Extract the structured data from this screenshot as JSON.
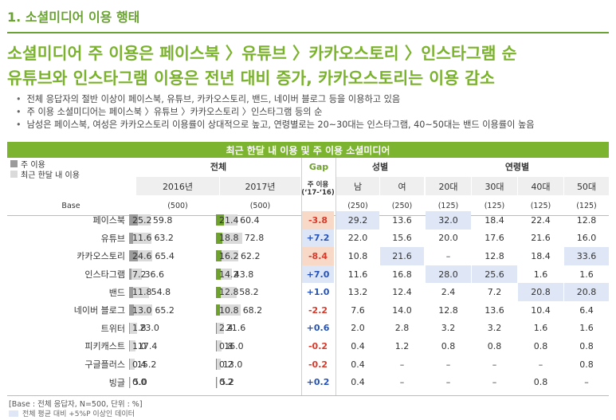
{
  "section_title": "1. 소셜미디어 이용 행태",
  "headline": [
    "소셜미디어 주 이용은 페이스북 〉유튜브 〉카카오스토리 〉인스타그램 순",
    "유튜브와 인스타그램 이용은 전년 대비 증가, 카카오스토리는 이용 감소"
  ],
  "bullets": [
    "전체 응답자의 절반 이상이 페이스북, 유튜브, 카카오스토리, 밴드, 네이버 블로그 등을 이용하고 있음",
    "주 이용 소셜미디어는 페이스북 〉유튜브 〉카카오스토리 〉인스타그램 등의 순",
    "남성은 페이스북, 여성은 카카오스토리 이용률이 상대적으로 높고, 연령별로는 20~30대는 인스타그램, 40~50대는 밴드 이용률이 높음"
  ],
  "table": {
    "banner": "최근 한달 내 이용 및 주 이용 소셜미디어",
    "legend_main": "주 이용",
    "legend_all": "최근 한달 내 이용",
    "group_total": "전체",
    "group_gap": "Gap",
    "gap_sub": "주 이용\n(‘17-‘16)",
    "group_gender": "성별",
    "group_age": "연령별",
    "col_2016": "2016년",
    "col_2017": "2017년",
    "col_male": "남",
    "col_female": "여",
    "col_20": "20대",
    "col_30": "30대",
    "col_40": "40대",
    "col_50": "50대",
    "base_label": "Base",
    "base": [
      "(500)",
      "(500)",
      "(250)",
      "(250)",
      "(125)",
      "(125)",
      "(125)",
      "(125)"
    ],
    "colors": {
      "main2016": "#9b9b9b",
      "main2017": "#6ea12e",
      "all": "#dadada",
      "highlight": "#dfe7f7",
      "neg": "#d63a2b",
      "pos": "#2452b9"
    },
    "rows": [
      {
        "name": "페이스북",
        "m16": 25.2,
        "a16": 59.8,
        "m17": 21.4,
        "a17": 60.4,
        "gap": "-3.8",
        "gap_hl": true,
        "male": "29.2",
        "female": "13.6",
        "a20": "32.0",
        "a30": "18.4",
        "a40": "22.4",
        "a50": "12.8",
        "hl": [
          "male",
          "a20"
        ]
      },
      {
        "name": "유튜브",
        "m16": 11.6,
        "a16": 63.2,
        "m17": 18.8,
        "a17": 72.8,
        "gap": "+7.2",
        "gap_hl": true,
        "male": "22.0",
        "female": "15.6",
        "a20": "20.0",
        "a30": "17.6",
        "a40": "21.6",
        "a50": "16.0",
        "hl": []
      },
      {
        "name": "카카오스토리",
        "m16": 24.6,
        "a16": 65.4,
        "m17": 16.2,
        "a17": 62.2,
        "gap": "-8.4",
        "gap_hl": true,
        "male": "10.8",
        "female": "21.6",
        "a20": "–",
        "a30": "12.8",
        "a40": "18.4",
        "a50": "33.6",
        "hl": [
          "female",
          "a50"
        ]
      },
      {
        "name": "인스타그램",
        "m16": 7.2,
        "a16": 36.6,
        "m17": 14.2,
        "a17": 43.8,
        "gap": "+7.0",
        "gap_hl": true,
        "male": "11.6",
        "female": "16.8",
        "a20": "28.0",
        "a30": "25.6",
        "a40": "1.6",
        "a50": "1.6",
        "hl": [
          "a20",
          "a30"
        ]
      },
      {
        "name": "밴드",
        "m16": 11.8,
        "a16": 54.8,
        "m17": 12.8,
        "a17": 58.2,
        "gap": "+1.0",
        "gap_hl": false,
        "male": "13.2",
        "female": "12.4",
        "a20": "2.4",
        "a30": "7.2",
        "a40": "20.8",
        "a50": "20.8",
        "hl": [
          "a40",
          "a50"
        ]
      },
      {
        "name": "네이버 블로그",
        "m16": 13.0,
        "a16": 65.2,
        "m17": 10.8,
        "a17": 68.2,
        "gap": "-2.2",
        "gap_hl": false,
        "male": "7.6",
        "female": "14.0",
        "a20": "12.8",
        "a30": "13.6",
        "a40": "10.4",
        "a50": "6.4",
        "hl": []
      },
      {
        "name": "트위터",
        "m16": 1.8,
        "a16": 23.0,
        "m17": 2.4,
        "a17": 21.6,
        "gap": "+0.6",
        "gap_hl": false,
        "male": "2.0",
        "female": "2.8",
        "a20": "3.2",
        "a30": "3.2",
        "a40": "1.6",
        "a50": "1.6",
        "hl": []
      },
      {
        "name": "피키캐스트",
        "m16": 1.0,
        "a16": 17.4,
        "m17": 0.8,
        "a17": 16.0,
        "gap": "-0.2",
        "gap_hl": false,
        "male": "0.4",
        "female": "1.2",
        "a20": "0.8",
        "a30": "0.8",
        "a40": "0.8",
        "a50": "0.8",
        "hl": []
      },
      {
        "name": "구글플러스",
        "m16": 0.4,
        "a16": 15.2,
        "m17": 0.2,
        "a17": 13.0,
        "gap": "-0.2",
        "gap_hl": false,
        "male": "0.4",
        "female": "–",
        "a20": "–",
        "a30": "–",
        "a40": "–",
        "a50": "0.8",
        "hl": []
      },
      {
        "name": "빙글",
        "m16": 0.0,
        "a16": 5.0,
        "m17": 0.2,
        "a17": 5.2,
        "gap": "+0.2",
        "gap_hl": false,
        "male": "0.4",
        "female": "–",
        "a20": "–",
        "a30": "–",
        "a40": "0.8",
        "a50": "–",
        "hl": []
      }
    ]
  },
  "note_base": "[Base : 전체 응답자, N=500, 단위 : %]",
  "note_highlight": "전체 평균 대비 +5%P 이상인 데이터"
}
